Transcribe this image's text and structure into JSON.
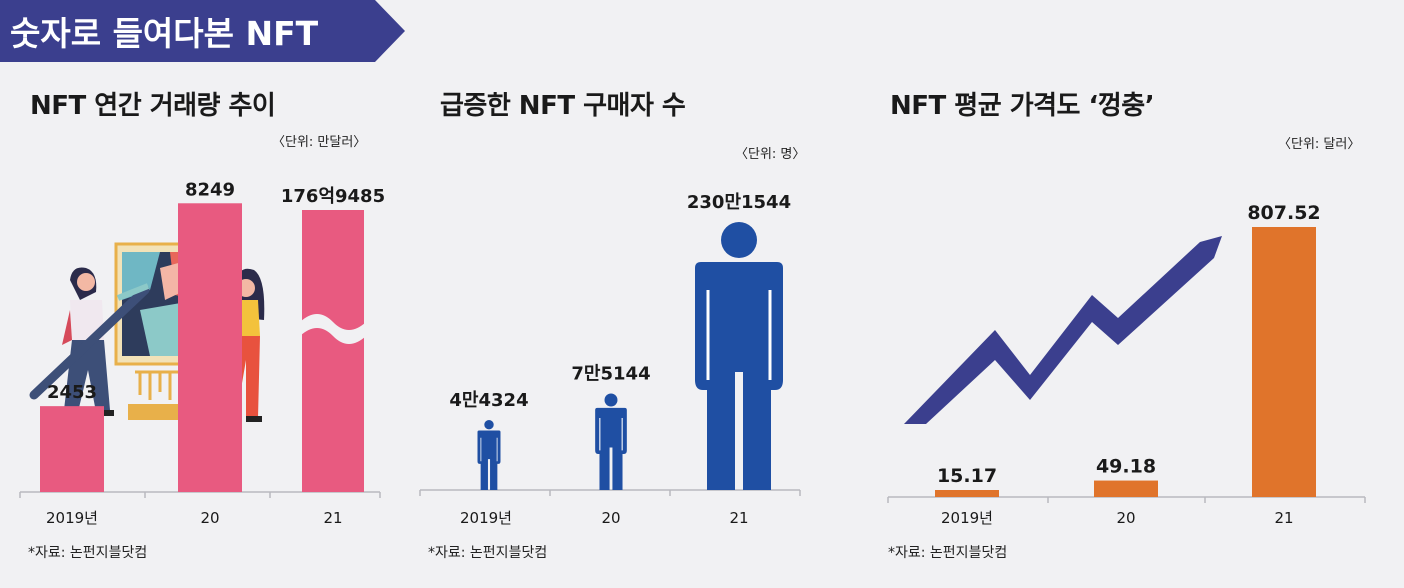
{
  "banner": {
    "title": "숫자로 들여다본 NFT",
    "color": "#3b3f8e"
  },
  "charts": [
    {
      "title": "NFT 연간 거래량 추이",
      "unit": "〈단위: 만달러〉",
      "source": "*자료: 논펀지블닷컴",
      "chart_data": {
        "type": "bar",
        "categories": [
          "2019년",
          "20",
          "21"
        ],
        "values": [
          2453,
          8249,
          1769485
        ],
        "value_labels": [
          "2453",
          "8249",
          "176억9485"
        ],
        "axis_break": true,
        "color": "#e85a80"
      }
    },
    {
      "title": "급증한 NFT 구매자 수",
      "unit": "〈단위: 명〉",
      "source": "*자료: 논펀지블닷컴",
      "chart_data": {
        "type": "bar",
        "categories": [
          "2019년",
          "20",
          "21"
        ],
        "values": [
          44324,
          75144,
          2301544
        ],
        "value_labels": [
          "4만4324",
          "7만5144",
          "230만1544"
        ],
        "marker": "person-icon",
        "color": "#1f4fa3"
      }
    },
    {
      "title": "NFT 평균 가격도 ‘껑충’",
      "unit": "〈단위: 달러〉",
      "source": "*자료: 논펀지블닷컴",
      "chart_data": {
        "type": "bar",
        "categories": [
          "2019년",
          "20",
          "21"
        ],
        "values": [
          15.17,
          49.18,
          807.52
        ],
        "value_labels": [
          "15.17",
          "49.18",
          "807.52"
        ],
        "decoration": "rising-arrow-icon",
        "color": "#e0742b"
      }
    }
  ]
}
